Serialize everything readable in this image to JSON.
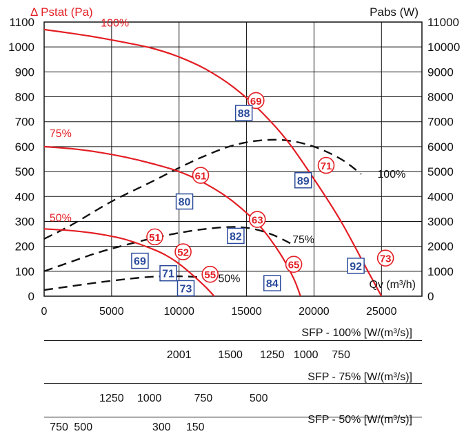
{
  "chart_data": {
    "type": "line",
    "title": "",
    "left_axis": {
      "label": "Δ Pstat (Pa)",
      "ylim": [
        0,
        1100
      ],
      "ticks": [
        0,
        100,
        200,
        300,
        400,
        500,
        600,
        700,
        800,
        900,
        1000,
        1100
      ]
    },
    "right_axis": {
      "label": "Pabs (W)",
      "ylim": [
        0,
        11000
      ],
      "ticks": [
        0,
        1000,
        2000,
        3000,
        4000,
        5000,
        6000,
        7000,
        8000,
        9000,
        10000,
        11000
      ]
    },
    "x_axis": {
      "label": "Qv (m³/h)",
      "xlim": [
        0,
        28000
      ],
      "ticks": [
        0,
        5000,
        10000,
        15000,
        20000,
        25000
      ]
    },
    "grid": true,
    "pressure_series": [
      {
        "name": "100%",
        "color": "#e31e24",
        "x": [
          0,
          2000,
          4000,
          6000,
          8000,
          10000,
          12000,
          14000,
          16000,
          18000,
          20000,
          22000,
          24000,
          25000
        ],
        "y": [
          1070,
          1055,
          1038,
          1018,
          995,
          960,
          910,
          840,
          745,
          625,
          470,
          300,
          100,
          0
        ]
      },
      {
        "name": "75%",
        "color": "#e31e24",
        "x": [
          0,
          2000,
          4000,
          6000,
          8000,
          10000,
          12000,
          14000,
          16000,
          17500,
          18500,
          19000
        ],
        "y": [
          600,
          592,
          578,
          558,
          532,
          500,
          450,
          380,
          280,
          170,
          70,
          0
        ]
      },
      {
        "name": "50%",
        "color": "#e31e24",
        "x": [
          0,
          2000,
          4000,
          6000,
          8000,
          9000,
          10000,
          11000,
          12000,
          12600
        ],
        "y": [
          270,
          263,
          250,
          228,
          190,
          165,
          130,
          85,
          35,
          0
        ]
      }
    ],
    "power_series": [
      {
        "name": "100%",
        "color": "#111111",
        "x": [
          0,
          2000,
          5000,
          8000,
          10000,
          12000,
          14000,
          16000,
          18000,
          20000,
          22000,
          23500
        ],
        "y": [
          2300,
          2850,
          3800,
          4600,
          5150,
          5650,
          6050,
          6250,
          6250,
          6000,
          5500,
          4900
        ]
      },
      {
        "name": "75%",
        "color": "#111111",
        "x": [
          0,
          2000,
          4000,
          6000,
          8000,
          10000,
          12000,
          14000,
          15500,
          17000,
          18500
        ],
        "y": [
          1000,
          1380,
          1750,
          2050,
          2320,
          2540,
          2700,
          2780,
          2700,
          2450,
          2050
        ]
      },
      {
        "name": "50%",
        "color": "#111111",
        "x": [
          0,
          2000,
          4000,
          6000,
          8000,
          10000,
          11500,
          12500
        ],
        "y": [
          250,
          400,
          550,
          680,
          780,
          800,
          760,
          660
        ]
      }
    ],
    "noise_labels_red": [
      {
        "text": "69",
        "x": 15700,
        "y": 785
      },
      {
        "text": "71",
        "x": 20900,
        "y": 525
      },
      {
        "text": "61",
        "x": 11600,
        "y": 485
      },
      {
        "text": "63",
        "x": 15800,
        "y": 308
      },
      {
        "text": "51",
        "x": 8200,
        "y": 238
      },
      {
        "text": "52",
        "x": 10300,
        "y": 178
      },
      {
        "text": "55",
        "x": 12300,
        "y": 88
      },
      {
        "text": "65",
        "x": 18500,
        "y": 128
      },
      {
        "text": "73",
        "x": 25300,
        "y": 153
      }
    ],
    "efficiency_labels_blue": [
      {
        "text": "88",
        "x": 14800,
        "y": 735
      },
      {
        "text": "89",
        "x": 19200,
        "y": 465
      },
      {
        "text": "80",
        "x": 10400,
        "y": 380
      },
      {
        "text": "82",
        "x": 14200,
        "y": 242
      },
      {
        "text": "69",
        "x": 7100,
        "y": 142
      },
      {
        "text": "71",
        "x": 9200,
        "y": 92
      },
      {
        "text": "73",
        "x": 10500,
        "y": 32
      },
      {
        "text": "84",
        "x": 16900,
        "y": 52
      },
      {
        "text": "92",
        "x": 23100,
        "y": 122
      }
    ],
    "sfp_scales": [
      {
        "title": "SFP - 100% [W/(m³/s)]",
        "ticks": [
          {
            "label": "2001",
            "x": 10000
          },
          {
            "label": "1500",
            "x": 13800
          },
          {
            "label": "1250",
            "x": 16900
          },
          {
            "label": "1000",
            "x": 19400
          },
          {
            "label": "750",
            "x": 22000
          }
        ]
      },
      {
        "title": "SFP - 75% [W/(m³/s)]",
        "ticks": [
          {
            "label": "1250",
            "x": 5000
          },
          {
            "label": "1000",
            "x": 7800
          },
          {
            "label": "750",
            "x": 11800
          },
          {
            "label": "500",
            "x": 15900
          }
        ]
      },
      {
        "title": "SFP - 50% [W/(m³/s)]",
        "ticks": [
          {
            "label": "750",
            "x": 1100
          },
          {
            "label": "500",
            "x": 2900
          },
          {
            "label": "300",
            "x": 8700
          },
          {
            "label": "150",
            "x": 11200
          }
        ]
      }
    ]
  }
}
